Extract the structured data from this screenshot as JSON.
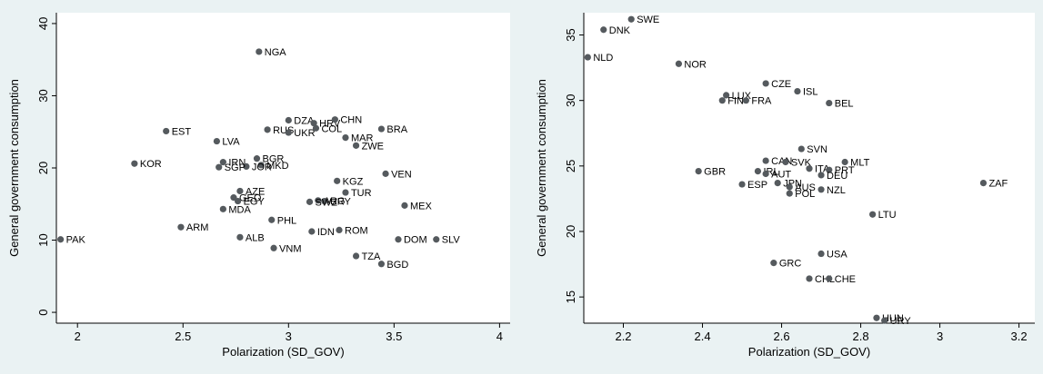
{
  "chart_data": [
    {
      "type": "scatter",
      "xlabel": "Polarization (SD_GOV)",
      "ylabel": "General government consumption",
      "xlim": [
        1.9,
        4.05
      ],
      "ylim": [
        -1.5,
        41.5
      ],
      "xticks": [
        "2",
        "2.5",
        "3",
        "3.5",
        "4"
      ],
      "yticks": [
        "0",
        "10",
        "20",
        "30",
        "40"
      ],
      "grid": false,
      "points": [
        {
          "label": "NGA",
          "x": 2.86,
          "y": 36.1
        },
        {
          "label": "DZA",
          "x": 3.0,
          "y": 26.6
        },
        {
          "label": "HRV",
          "x": 3.12,
          "y": 26.2
        },
        {
          "label": "CHN",
          "x": 3.22,
          "y": 26.7
        },
        {
          "label": "EST",
          "x": 2.42,
          "y": 25.1
        },
        {
          "label": "RUS",
          "x": 2.9,
          "y": 25.3
        },
        {
          "label": "UKR",
          "x": 3.0,
          "y": 24.9
        },
        {
          "label": "COL",
          "x": 3.13,
          "y": 25.5
        },
        {
          "label": "BRA",
          "x": 3.44,
          "y": 25.4
        },
        {
          "label": "MAR",
          "x": 3.27,
          "y": 24.2
        },
        {
          "label": "LVA",
          "x": 2.66,
          "y": 23.7
        },
        {
          "label": "ZWE",
          "x": 3.32,
          "y": 23.1
        },
        {
          "label": "BGR",
          "x": 2.85,
          "y": 21.3
        },
        {
          "label": "IRN",
          "x": 2.69,
          "y": 20.8
        },
        {
          "label": "MKD",
          "x": 2.87,
          "y": 20.4
        },
        {
          "label": "JOR",
          "x": 2.8,
          "y": 20.2
        },
        {
          "label": "KOR",
          "x": 2.27,
          "y": 20.6
        },
        {
          "label": "SGP",
          "x": 2.67,
          "y": 20.1
        },
        {
          "label": "VEN",
          "x": 3.46,
          "y": 19.2
        },
        {
          "label": "KGZ",
          "x": 3.23,
          "y": 18.2
        },
        {
          "label": "AZE",
          "x": 2.77,
          "y": 16.8
        },
        {
          "label": "TUR",
          "x": 3.27,
          "y": 16.6
        },
        {
          "label": "GEO",
          "x": 2.74,
          "y": 15.9
        },
        {
          "label": "EGY",
          "x": 2.76,
          "y": 15.4
        },
        {
          "label": "ARG",
          "x": 3.14,
          "y": 15.5
        },
        {
          "label": "URY",
          "x": 3.17,
          "y": 15.4
        },
        {
          "label": "SWZ",
          "x": 3.1,
          "y": 15.3
        },
        {
          "label": "MEX",
          "x": 3.55,
          "y": 14.8
        },
        {
          "label": "MDA",
          "x": 2.69,
          "y": 14.3
        },
        {
          "label": "PHL",
          "x": 2.92,
          "y": 12.8
        },
        {
          "label": "ARM",
          "x": 2.49,
          "y": 11.8
        },
        {
          "label": "IDN",
          "x": 3.11,
          "y": 11.2
        },
        {
          "label": "ROM",
          "x": 3.24,
          "y": 11.4
        },
        {
          "label": "ALB",
          "x": 2.77,
          "y": 10.4
        },
        {
          "label": "PAK",
          "x": 1.92,
          "y": 10.1
        },
        {
          "label": "DOM",
          "x": 3.52,
          "y": 10.1
        },
        {
          "label": "SLV",
          "x": 3.7,
          "y": 10.1
        },
        {
          "label": "VNM",
          "x": 2.93,
          "y": 8.9
        },
        {
          "label": "TZA",
          "x": 3.32,
          "y": 7.8
        },
        {
          "label": "BGD",
          "x": 3.44,
          "y": 6.7
        }
      ]
    },
    {
      "type": "scatter",
      "xlabel": "Polarization (SD_GOV)",
      "ylabel": "General government consumption",
      "xlim": [
        2.1,
        3.24
      ],
      "ylim": [
        13.0,
        36.7
      ],
      "xticks": [
        "2.2",
        "2.4",
        "2.6",
        "2.8",
        "3",
        "3.2"
      ],
      "yticks": [
        "15",
        "20",
        "25",
        "30",
        "35"
      ],
      "grid": false,
      "points": [
        {
          "label": "SWE",
          "x": 2.22,
          "y": 36.2
        },
        {
          "label": "DNK",
          "x": 2.15,
          "y": 35.4
        },
        {
          "label": "NLD",
          "x": 2.11,
          "y": 33.3
        },
        {
          "label": "NOR",
          "x": 2.34,
          "y": 32.8
        },
        {
          "label": "CZE",
          "x": 2.56,
          "y": 31.3
        },
        {
          "label": "ISL",
          "x": 2.64,
          "y": 30.7
        },
        {
          "label": "LUX",
          "x": 2.46,
          "y": 30.4
        },
        {
          "label": "FIN",
          "x": 2.45,
          "y": 30.0
        },
        {
          "label": "FRA",
          "x": 2.51,
          "y": 30.0
        },
        {
          "label": "BEL",
          "x": 2.72,
          "y": 29.8
        },
        {
          "label": "SVN",
          "x": 2.65,
          "y": 26.3
        },
        {
          "label": "CAN",
          "x": 2.56,
          "y": 25.4
        },
        {
          "label": "SVK",
          "x": 2.61,
          "y": 25.3
        },
        {
          "label": "MLT",
          "x": 2.76,
          "y": 25.3
        },
        {
          "label": "ITA",
          "x": 2.67,
          "y": 24.8
        },
        {
          "label": "PRT",
          "x": 2.72,
          "y": 24.7
        },
        {
          "label": "GBR",
          "x": 2.39,
          "y": 24.6
        },
        {
          "label": "IRL",
          "x": 2.54,
          "y": 24.6
        },
        {
          "label": "AUT",
          "x": 2.56,
          "y": 24.4
        },
        {
          "label": "DEU",
          "x": 2.7,
          "y": 24.3
        },
        {
          "label": "ZAF",
          "x": 3.11,
          "y": 23.7
        },
        {
          "label": "ESP",
          "x": 2.5,
          "y": 23.6
        },
        {
          "label": "JPN",
          "x": 2.59,
          "y": 23.7
        },
        {
          "label": "AUS",
          "x": 2.62,
          "y": 23.4
        },
        {
          "label": "NZL",
          "x": 2.7,
          "y": 23.2
        },
        {
          "label": "POL",
          "x": 2.62,
          "y": 22.9
        },
        {
          "label": "LTU",
          "x": 2.83,
          "y": 21.3
        },
        {
          "label": "USA",
          "x": 2.7,
          "y": 18.3
        },
        {
          "label": "GRC",
          "x": 2.58,
          "y": 17.6
        },
        {
          "label": "CHL",
          "x": 2.67,
          "y": 16.4
        },
        {
          "label": "CHE",
          "x": 2.72,
          "y": 16.4
        },
        {
          "label": "HUN",
          "x": 2.84,
          "y": 13.4
        },
        {
          "label": "URY",
          "x": 2.86,
          "y": 13.2
        }
      ]
    }
  ]
}
